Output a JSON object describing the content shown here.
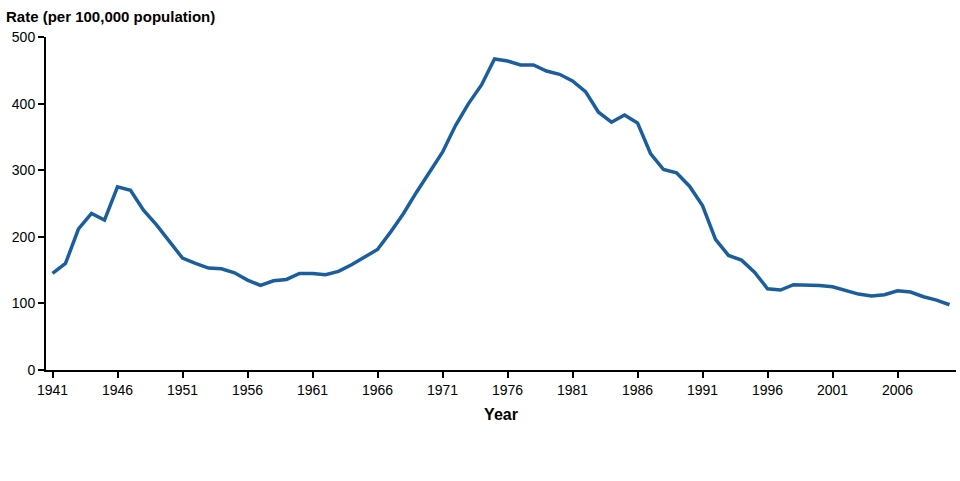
{
  "chart_data": {
    "type": "line",
    "x_label": "Year",
    "y_label": "Rate (per 100,000 population)",
    "x": [
      1941,
      1942,
      1943,
      1944,
      1945,
      1946,
      1947,
      1948,
      1949,
      1950,
      1951,
      1952,
      1953,
      1954,
      1955,
      1956,
      1957,
      1958,
      1959,
      1960,
      1961,
      1962,
      1963,
      1964,
      1965,
      1966,
      1967,
      1968,
      1969,
      1970,
      1971,
      1972,
      1973,
      1974,
      1975,
      1976,
      1977,
      1978,
      1979,
      1980,
      1981,
      1982,
      1983,
      1984,
      1985,
      1986,
      1987,
      1988,
      1989,
      1990,
      1991,
      1992,
      1993,
      1994,
      1995,
      1996,
      1997,
      1998,
      1999,
      2000,
      2001,
      2002,
      2003,
      2004,
      2005,
      2006,
      2007,
      2008,
      2009,
      2010
    ],
    "values": [
      145,
      160,
      212,
      235,
      225,
      275,
      270,
      240,
      218,
      193,
      168,
      160,
      153,
      152,
      146,
      135,
      127,
      134,
      136,
      145,
      145,
      143,
      148,
      158,
      169,
      181,
      207,
      235,
      267,
      297,
      327,
      367,
      400,
      428,
      467,
      464,
      458,
      458,
      449,
      444,
      434,
      418,
      387,
      372,
      383,
      371,
      325,
      301,
      296,
      276,
      247,
      196,
      172,
      165,
      147,
      122,
      120,
      128,
      128,
      127,
      125,
      120,
      114,
      111,
      113,
      119,
      117,
      110,
      105,
      98
    ],
    "color": "#1b5e9e",
    "xlim": [
      1940.5,
      2010.5
    ],
    "xticks": [
      1941,
      1946,
      1951,
      1956,
      1961,
      1966,
      1971,
      1976,
      1981,
      1986,
      1991,
      1996,
      2001,
      2006
    ],
    "ylim": [
      0,
      500
    ],
    "yticks": [
      0,
      100,
      200,
      300,
      400,
      500
    ],
    "grid": false
  }
}
